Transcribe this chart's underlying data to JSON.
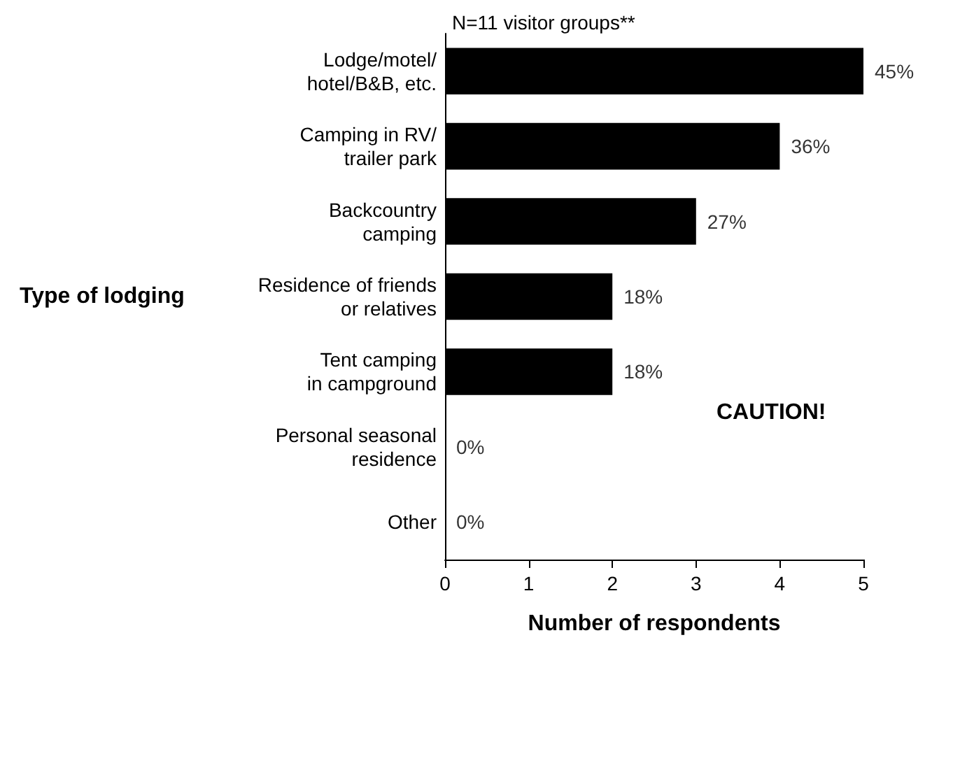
{
  "chart_data": {
    "type": "bar",
    "orientation": "horizontal",
    "title": "N=11 visitor groups**",
    "xlabel": "Number of respondents",
    "ylabel": "Type of lodging",
    "categories": [
      "Lodge/motel/\nhotel/B&B, etc.",
      "Camping in RV/\ntrailer park",
      "Backcountry\ncamping",
      "Residence of friends\nor relatives",
      "Tent camping\nin campground",
      "Personal seasonal\nresidence",
      "Other"
    ],
    "values": [
      5,
      4,
      3,
      2,
      2,
      0,
      0
    ],
    "color": "#000000",
    "xlim": [
      0,
      5
    ],
    "xticks": [
      0,
      1,
      2,
      3,
      4,
      5
    ],
    "grid": false,
    "annotations": [
      {
        "text": "45%",
        "x": 5,
        "y": "Lodge/motel/\nhotel/B&B, etc."
      },
      {
        "text": "36%",
        "x": 4,
        "y": "Camping in RV/\ntrailer park"
      },
      {
        "text": "27%",
        "x": 3,
        "y": "Backcountry\ncamping"
      },
      {
        "text": "18%",
        "x": 2,
        "y": "Residence of friends\nor relatives"
      },
      {
        "text": "18%",
        "x": 2,
        "y": "Tent camping\nin campground"
      },
      {
        "text": "0%",
        "x": 0,
        "y": "Personal seasonal\nresidence"
      },
      {
        "text": "0%",
        "x": 0,
        "y": "Other"
      },
      "CAUTION!"
    ]
  }
}
